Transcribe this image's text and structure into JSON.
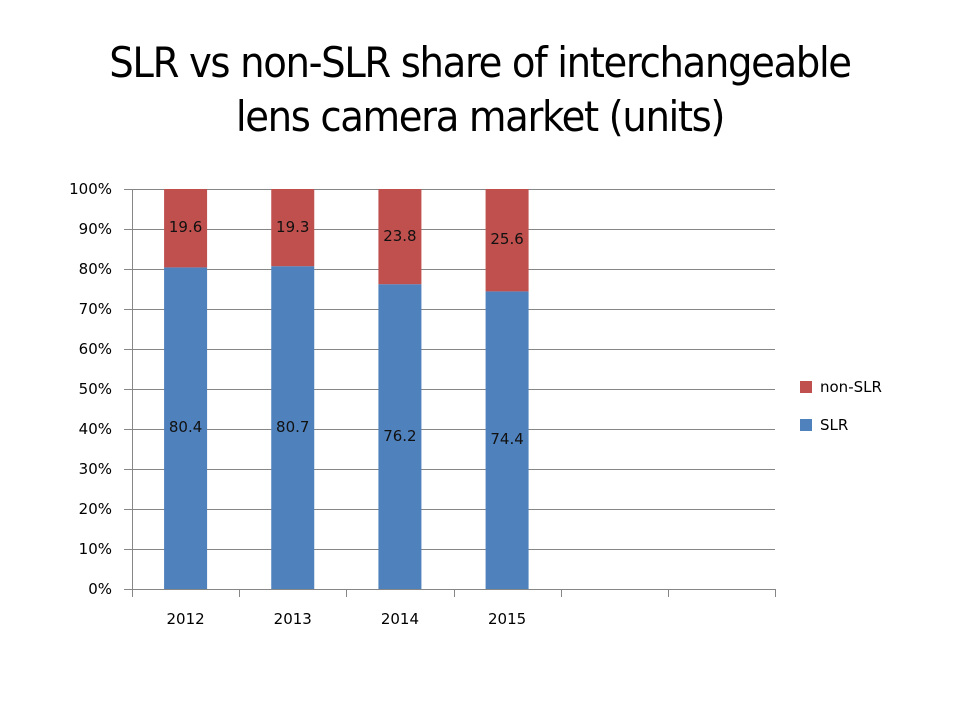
{
  "slide": {
    "title_lines": [
      "SLR vs non-SLR share of  interchangeable",
      "lens camera market (units)"
    ]
  },
  "colors": {
    "slr": "#4f81bd",
    "non_slr": "#c0504d",
    "gridline": "#868686",
    "axis": "#868686"
  },
  "legend": {
    "items": [
      {
        "label": "non-SLR",
        "color": "#c0504d"
      },
      {
        "label": "SLR",
        "color": "#4f81bd"
      }
    ]
  },
  "chart_data": {
    "type": "bar",
    "stacked": true,
    "percent_stacked": true,
    "title": "SLR vs non-SLR share of  interchangeable lens camera market (units)",
    "categories": [
      "2012",
      "2013",
      "2014",
      "2015",
      "",
      ""
    ],
    "series": [
      {
        "name": "SLR",
        "values": [
          80.4,
          80.7,
          76.2,
          74.4
        ],
        "color": "#4f81bd"
      },
      {
        "name": "non-SLR",
        "values": [
          19.6,
          19.3,
          23.8,
          25.6
        ],
        "color": "#c0504d"
      }
    ],
    "data_labels": {
      "SLR": [
        "80.4",
        "80.7",
        "76.2",
        "74.4"
      ],
      "non-SLR": [
        "19.6",
        "19.3",
        "23.8",
        "25.6"
      ]
    },
    "xlabel": "",
    "ylabel": "",
    "ylim": [
      0,
      100
    ],
    "yticks": [
      "0%",
      "10%",
      "20%",
      "30%",
      "40%",
      "50%",
      "60%",
      "70%",
      "80%",
      "90%",
      "100%"
    ],
    "grid": true,
    "legend_position": "right"
  }
}
